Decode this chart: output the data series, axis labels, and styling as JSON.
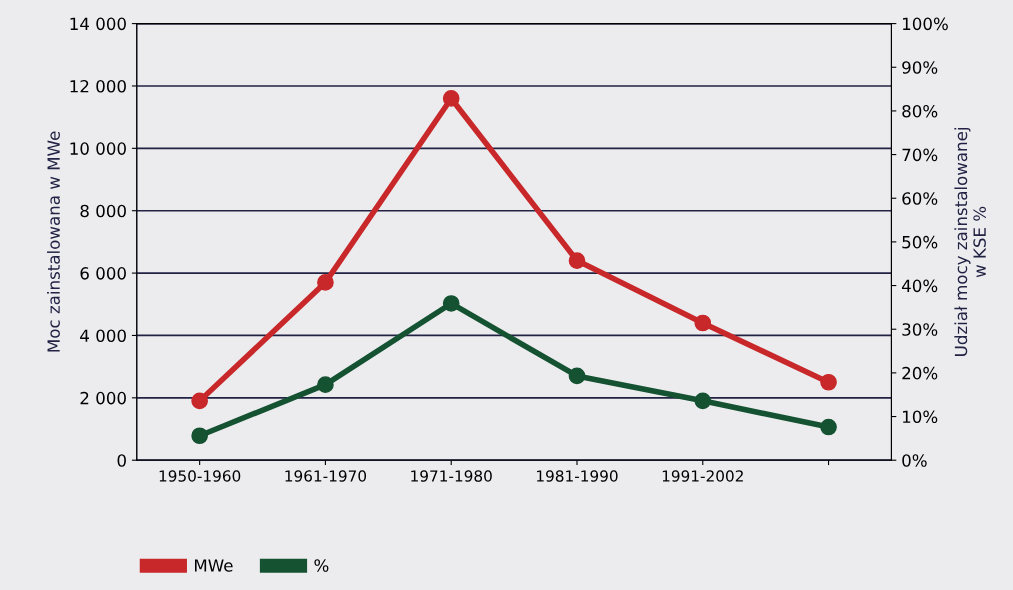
{
  "chart_data": {
    "type": "line",
    "ylabel": "Moc zainstalowana w MWe",
    "y2label": "Udział mocy zainstalowanej\nw KSE %",
    "categories": [
      "1950-1960",
      "1961-1970",
      "1971-1980",
      "1981-1990",
      "1991-2002",
      null
    ],
    "series": [
      {
        "name": "MWe",
        "color": "#c8282a",
        "values": [
          1900,
          5700,
          11600,
          6400,
          4400,
          2500
        ]
      },
      {
        "name": "%",
        "color": "#145232",
        "axis": "y2",
        "values": [
          5.6,
          17.3,
          35.9,
          19.3,
          13.6,
          7.6
        ]
      }
    ],
    "ylim": [
      0,
      14000
    ],
    "yticks": [
      0,
      {
        "value": 2000,
        "label": "2 000"
      },
      {
        "value": 4000,
        "label": "4 000"
      },
      {
        "value": 6000,
        "label": "6 000"
      },
      {
        "value": 8000,
        "label": "8 000"
      },
      {
        "value": 10000,
        "label": "10 000"
      },
      {
        "value": 12000,
        "label": "12 000"
      },
      {
        "value": 14000,
        "label": "14 000"
      }
    ],
    "y2lim": [
      0,
      100
    ],
    "y2ticks": [
      {
        "value": 0,
        "label": "0%"
      },
      {
        "value": 10,
        "label": "10%"
      },
      {
        "value": 20,
        "label": "20%"
      },
      {
        "value": 30,
        "label": "30%"
      },
      {
        "value": 40,
        "label": "40%"
      },
      {
        "value": 50,
        "label": "50%"
      },
      {
        "value": 60,
        "label": "60%"
      },
      {
        "value": 70,
        "label": "70%"
      },
      {
        "value": 80,
        "label": "80%"
      },
      {
        "value": 90,
        "label": "90%"
      },
      {
        "value": 100,
        "label": "100%"
      }
    ],
    "grid": "y",
    "legend": "bottom left",
    "marker": "circle",
    "line_style": "solid"
  }
}
